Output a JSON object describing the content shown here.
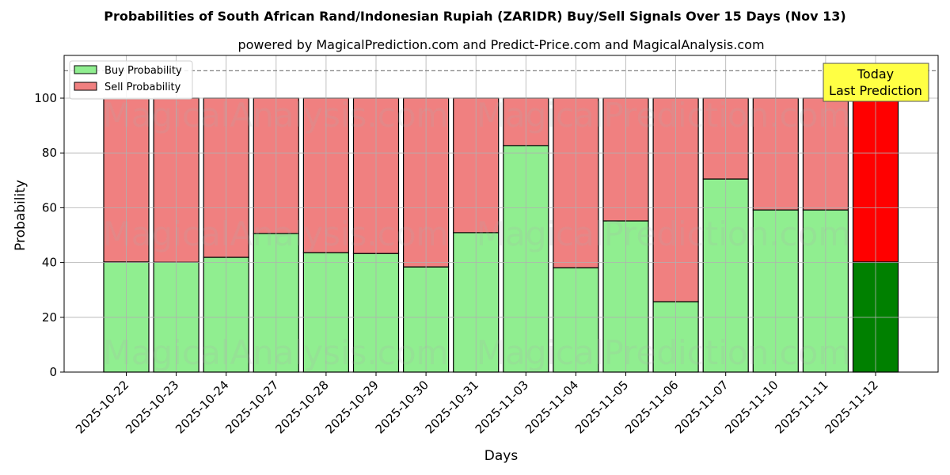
{
  "chart_data": {
    "type": "bar",
    "stacked": true,
    "title": "Probabilities of South African Rand/Indonesian Rupiah (ZARIDR) Buy/Sell Signals Over 15 Days (Nov 13)",
    "subtitle": "powered by MagicalPrediction.com and Predict-Price.com and MagicalAnalysis.com",
    "xlabel": "Days",
    "ylabel": "Probability",
    "ylim": [
      0,
      115
    ],
    "yticks": [
      0,
      20,
      40,
      60,
      80,
      100
    ],
    "grid": true,
    "legend_position": "upper left",
    "categories": [
      "2025-10-22",
      "2025-10-23",
      "2025-10-24",
      "2025-10-27",
      "2025-10-28",
      "2025-10-29",
      "2025-10-30",
      "2025-10-31",
      "2025-11-03",
      "2025-11-04",
      "2025-11-05",
      "2025-11-06",
      "2025-11-07",
      "2025-11-10",
      "2025-11-11",
      "2025-11-12"
    ],
    "series": [
      {
        "name": "Buy Probability",
        "color": "#90ee90",
        "values": [
          40.2,
          40.1,
          41.9,
          50.6,
          43.6,
          43.3,
          38.4,
          50.9,
          82.7,
          38.1,
          55.2,
          25.7,
          70.5,
          59.2,
          59.2,
          40.2
        ]
      },
      {
        "name": "Sell Probability",
        "color": "#f08080",
        "values": [
          59.8,
          59.9,
          58.1,
          49.4,
          56.4,
          56.7,
          61.6,
          49.1,
          17.3,
          61.9,
          44.8,
          74.3,
          29.5,
          40.8,
          40.8,
          59.8
        ]
      }
    ],
    "highlight": {
      "index": 15,
      "buy_color": "#008000",
      "sell_color": "#ff0000"
    },
    "reference_line": {
      "y": 110,
      "style": "dashed",
      "color": "#808080"
    },
    "annotation": {
      "lines": [
        "Today",
        "Last Prediction"
      ],
      "background": "#ffff44"
    },
    "watermarks": [
      "MagicalAnalysis.com",
      "MagicalPrediction.com"
    ]
  }
}
